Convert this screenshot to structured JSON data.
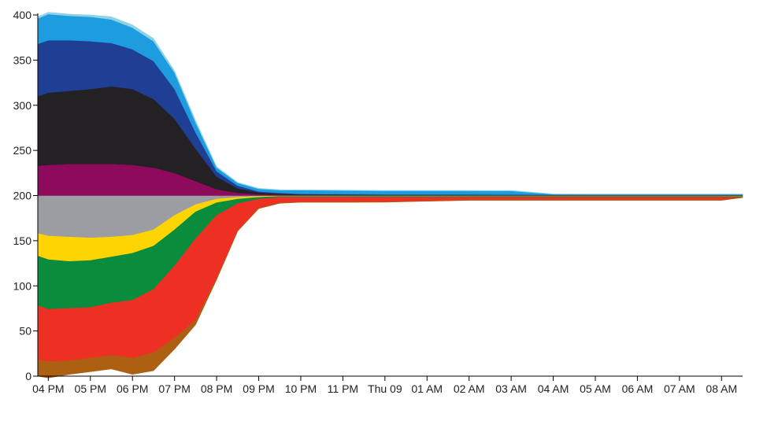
{
  "chart_data": {
    "type": "area",
    "title": "",
    "xlabel": "",
    "ylabel": "",
    "ylim": [
      0,
      400
    ],
    "grid": false,
    "legend": "none",
    "y_ticks": [
      0,
      50,
      100,
      150,
      200,
      250,
      300,
      350,
      400
    ],
    "x_tick_labels": [
      "04 PM",
      "05 PM",
      "06 PM",
      "07 PM",
      "08 PM",
      "09 PM",
      "10 PM",
      "11 PM",
      "Thu 09",
      "01 AM",
      "02 AM",
      "03 AM",
      "04 AM",
      "05 AM",
      "06 AM",
      "07 AM",
      "08 AM"
    ],
    "x": [
      15.75,
      16.0,
      16.5,
      17.0,
      17.5,
      18.0,
      18.5,
      19.0,
      19.5,
      20.0,
      20.5,
      21.0,
      21.5,
      22.0,
      23.0,
      24.0,
      25.0,
      26.0,
      27.0,
      28.0,
      29.0,
      30.0,
      31.0,
      32.0,
      32.5
    ],
    "baseline": 200,
    "streams_above": [
      {
        "color": "#8e0a5c",
        "values": [
          33,
          34,
          35,
          35,
          35,
          34,
          31,
          25,
          16,
          7,
          3,
          1.5,
          1,
          0.8,
          0.7,
          0.5,
          0.5,
          0.5,
          0.5,
          0.5,
          0.4,
          0.4,
          0.4,
          0.4,
          0.4
        ]
      },
      {
        "color": "#232123",
        "values": [
          77,
          80,
          81,
          83,
          86,
          84,
          76,
          60,
          36,
          14,
          5,
          2,
          1,
          0.6,
          0.5,
          0.4,
          0.4,
          0.4,
          0.3,
          0.3,
          0.3,
          0.3,
          0.3,
          0.3,
          0.3
        ]
      },
      {
        "color": "#1f3f94",
        "values": [
          58,
          58,
          56,
          53,
          48,
          44,
          42,
          33,
          18,
          6,
          3,
          1,
          1,
          0.5,
          0.4,
          0.3,
          0.3,
          0.3,
          0.3,
          0.2,
          0.2,
          0.2,
          0.2,
          0.2,
          0.2
        ]
      },
      {
        "color": "#1e9ce0",
        "values": [
          28,
          29,
          27,
          27,
          26,
          24,
          22,
          18,
          11,
          4,
          3,
          3,
          3,
          4,
          4,
          4,
          4,
          4,
          4,
          0.5,
          0.5,
          0.5,
          0.5,
          0.5,
          0.5
        ]
      },
      {
        "color": "#8fd2e6",
        "values": [
          2,
          2,
          2,
          2,
          3,
          3,
          3,
          2,
          2,
          1,
          0.5,
          0.5,
          0.5,
          0.5,
          0.5,
          0.5,
          0.5,
          0.5,
          0.5,
          0.3,
          0.3,
          0.3,
          0.3,
          0.3,
          0.3
        ]
      }
    ],
    "streams_below": [
      {
        "color": "#9b9da3",
        "values": [
          42,
          45,
          46,
          47,
          46,
          44,
          38,
          22,
          10,
          4,
          2,
          1,
          0.5,
          0.5,
          0.5,
          0.5,
          0.5,
          0.5,
          0.5,
          0.5,
          0.5,
          0.5,
          0.5,
          0.5,
          0.5
        ]
      },
      {
        "color": "#ffd400",
        "values": [
          25,
          26,
          27,
          25,
          22,
          20,
          18,
          16,
          8,
          4,
          2,
          1,
          0.5,
          0.5,
          0.5,
          0.5,
          0.5,
          0.5,
          0.5,
          0.5,
          0.5,
          0.5,
          0.5,
          0.5,
          0.5
        ]
      },
      {
        "color": "#098c3c",
        "values": [
          55,
          55,
          52,
          52,
          51,
          52,
          48,
          40,
          30,
          14,
          5,
          2,
          1,
          1,
          1,
          1,
          1,
          1,
          1,
          1,
          1,
          1,
          1,
          1,
          1
        ]
      },
      {
        "color": "#ee3024",
        "values": [
          60,
          58,
          58,
          56,
          58,
          64,
          70,
          80,
          90,
          70,
          30,
          10,
          6,
          5,
          5,
          5,
          4,
          3,
          3,
          3,
          3,
          3,
          3,
          3,
          0
        ]
      },
      {
        "color": "#ad5f12",
        "values": [
          18,
          18,
          15,
          15,
          15,
          18,
          20,
          12,
          5,
          1,
          0.5,
          0.5,
          0.5,
          0.5,
          0.5,
          0.3,
          0.3,
          0.3,
          0.3,
          0.3,
          0.3,
          0.3,
          0.3,
          0.3,
          0.3
        ]
      }
    ]
  }
}
